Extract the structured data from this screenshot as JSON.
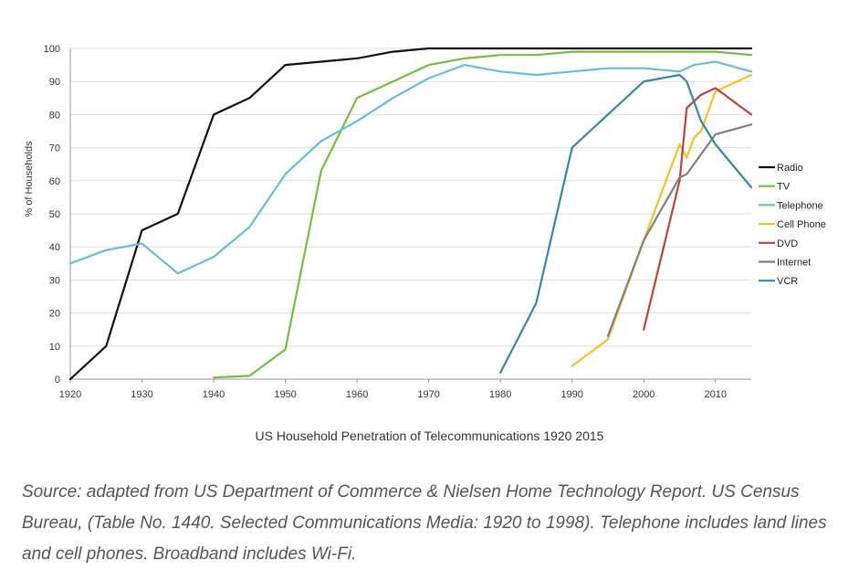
{
  "chart_data": {
    "type": "line",
    "title": "",
    "xlabel": "",
    "ylabel": "% of Households",
    "xlim": [
      1920,
      2015
    ],
    "ylim": [
      0,
      100
    ],
    "xticks": [
      1920,
      1930,
      1940,
      1950,
      1960,
      1970,
      1980,
      1990,
      2000,
      2010
    ],
    "yticks": [
      0,
      10,
      20,
      30,
      40,
      50,
      60,
      70,
      80,
      90,
      100
    ],
    "grid": "horizontal",
    "legend_position": "right",
    "series": [
      {
        "name": "Radio",
        "color": "#111111",
        "points": [
          [
            1920,
            0
          ],
          [
            1925,
            10
          ],
          [
            1930,
            45
          ],
          [
            1935,
            50
          ],
          [
            1940,
            80
          ],
          [
            1945,
            85
          ],
          [
            1950,
            95
          ],
          [
            1955,
            96
          ],
          [
            1960,
            97
          ],
          [
            1965,
            99
          ],
          [
            1970,
            100
          ],
          [
            1975,
            100
          ],
          [
            1980,
            100
          ],
          [
            1985,
            100
          ],
          [
            1990,
            100
          ],
          [
            1995,
            100
          ],
          [
            2000,
            100
          ],
          [
            2005,
            100
          ],
          [
            2010,
            100
          ],
          [
            2015,
            100
          ]
        ]
      },
      {
        "name": "TV",
        "color": "#77bb44",
        "points": [
          [
            1940,
            0.5
          ],
          [
            1945,
            1
          ],
          [
            1950,
            9
          ],
          [
            1955,
            63
          ],
          [
            1960,
            85
          ],
          [
            1965,
            90
          ],
          [
            1970,
            95
          ],
          [
            1975,
            97
          ],
          [
            1980,
            98
          ],
          [
            1985,
            98
          ],
          [
            1990,
            99
          ],
          [
            1995,
            99
          ],
          [
            2000,
            99
          ],
          [
            2005,
            99
          ],
          [
            2010,
            99
          ],
          [
            2015,
            98
          ]
        ]
      },
      {
        "name": "Telephone",
        "color": "#6bbbd6",
        "points": [
          [
            1920,
            35
          ],
          [
            1925,
            39
          ],
          [
            1930,
            41
          ],
          [
            1935,
            32
          ],
          [
            1940,
            37
          ],
          [
            1945,
            46
          ],
          [
            1950,
            62
          ],
          [
            1955,
            72
          ],
          [
            1960,
            78
          ],
          [
            1965,
            85
          ],
          [
            1970,
            91
          ],
          [
            1975,
            95
          ],
          [
            1980,
            93
          ],
          [
            1985,
            92
          ],
          [
            1990,
            93
          ],
          [
            1995,
            94
          ],
          [
            2000,
            94
          ],
          [
            2005,
            93
          ],
          [
            2007,
            95
          ],
          [
            2010,
            96
          ],
          [
            2015,
            93
          ]
        ]
      },
      {
        "name": "Cell Phone",
        "color": "#f2c12e",
        "points": [
          [
            1990,
            4
          ],
          [
            1995,
            12
          ],
          [
            2000,
            42
          ],
          [
            2005,
            71
          ],
          [
            2006,
            67
          ],
          [
            2007,
            73
          ],
          [
            2008,
            75
          ],
          [
            2010,
            87
          ],
          [
            2015,
            92
          ]
        ]
      },
      {
        "name": "DVD",
        "color": "#b5463e",
        "points": [
          [
            2000,
            15
          ],
          [
            2005,
            60
          ],
          [
            2006,
            82
          ],
          [
            2008,
            86
          ],
          [
            2010,
            88
          ],
          [
            2015,
            80
          ]
        ]
      },
      {
        "name": "Internet",
        "color": "#808080",
        "points": [
          [
            1995,
            13
          ],
          [
            2000,
            42
          ],
          [
            2005,
            61
          ],
          [
            2006,
            62
          ],
          [
            2010,
            74
          ],
          [
            2015,
            77
          ]
        ]
      },
      {
        "name": "VCR",
        "color": "#3a86a2",
        "points": [
          [
            1980,
            2
          ],
          [
            1985,
            23
          ],
          [
            1990,
            70
          ],
          [
            1995,
            80
          ],
          [
            2000,
            90
          ],
          [
            2005,
            92
          ],
          [
            2006,
            90
          ],
          [
            2008,
            78
          ],
          [
            2010,
            71
          ],
          [
            2015,
            58
          ]
        ]
      }
    ]
  },
  "caption": "US Household Penetration of Telecommunications 1920 2015",
  "source_text": "Source: adapted from US Department of Commerce & Nielsen Home Technology Report. US Census Bureau, (Table No. 1440. Selected Communications Media: 1920 to 1998). Telephone includes land lines and cell phones. Broadband includes Wi-Fi."
}
